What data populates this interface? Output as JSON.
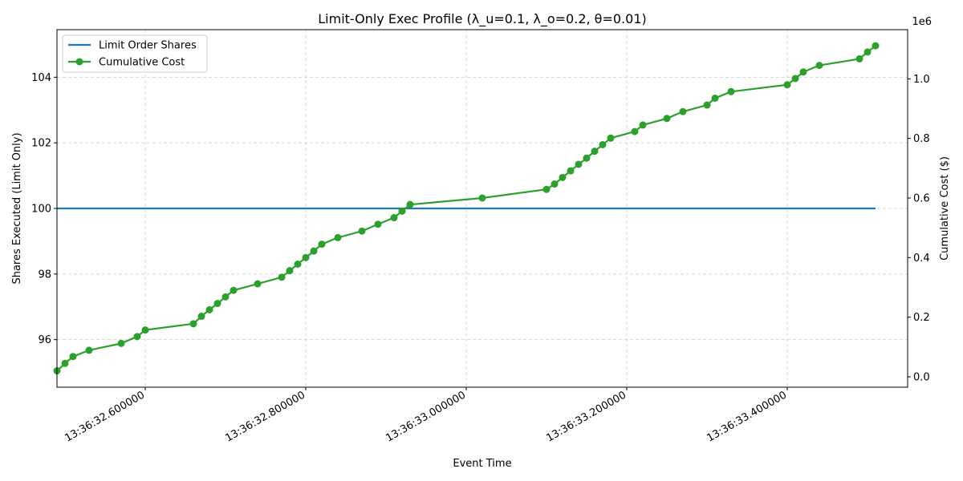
{
  "chart_data": {
    "type": "line",
    "title": "Limit-Only Exec Profile (λ_u=0.1, λ_o=0.2, θ=0.01)",
    "xlabel": "Event Time",
    "ylabel_left": "Shares Executed (Limit Only)",
    "ylabel_right": "Cumulative Cost ($)",
    "right_axis_offset_text": "1e6",
    "x_unit": "seconds after 13:36:32",
    "xlim": [
      0.49,
      1.55
    ],
    "ylim_left": [
      94.55,
      105.45
    ],
    "ylim_right": [
      -0.035,
      1.165
    ],
    "x_ticks": [
      {
        "value": 0.6,
        "label": "13:36:32.600000"
      },
      {
        "value": 0.8,
        "label": "13:36:32.800000"
      },
      {
        "value": 1.0,
        "label": "13:36:33.000000"
      },
      {
        "value": 1.2,
        "label": "13:36:33.200000"
      },
      {
        "value": 1.4,
        "label": "13:36:33.400000"
      }
    ],
    "y_ticks_left": [
      {
        "value": 96,
        "label": "96"
      },
      {
        "value": 98,
        "label": "98"
      },
      {
        "value": 100,
        "label": "100"
      },
      {
        "value": 102,
        "label": "102"
      },
      {
        "value": 104,
        "label": "104"
      }
    ],
    "y_ticks_right": [
      {
        "value": 0.0,
        "label": "0.0"
      },
      {
        "value": 0.2,
        "label": "0.2"
      },
      {
        "value": 0.4,
        "label": "0.4"
      },
      {
        "value": 0.6,
        "label": "0.6"
      },
      {
        "value": 0.8,
        "label": "0.8"
      },
      {
        "value": 1.0,
        "label": "1.0"
      }
    ],
    "grid": true,
    "legend_position": "upper-left",
    "series": [
      {
        "name": "Limit Order Shares",
        "axis": "left",
        "color": "#1f77b4",
        "marker": "none",
        "x": [
          0.49,
          1.51
        ],
        "y": [
          100,
          100
        ]
      },
      {
        "name": "Cumulative Cost",
        "axis": "right",
        "color": "#2ca02c",
        "marker": "circle",
        "x": [
          0.49,
          0.5,
          0.51,
          0.53,
          0.57,
          0.59,
          0.6,
          0.66,
          0.67,
          0.68,
          0.69,
          0.7,
          0.71,
          0.74,
          0.77,
          0.78,
          0.79,
          0.8,
          0.81,
          0.82,
          0.84,
          0.87,
          0.89,
          0.91,
          0.92,
          0.93,
          1.02,
          1.1,
          1.11,
          1.12,
          1.13,
          1.14,
          1.15,
          1.16,
          1.17,
          1.18,
          1.21,
          1.22,
          1.25,
          1.27,
          1.3,
          1.31,
          1.33,
          1.4,
          1.41,
          1.42,
          1.44,
          1.49,
          1.5,
          1.51
        ],
        "y": [
          0.02,
          0.045,
          0.068,
          0.089,
          0.112,
          0.135,
          0.157,
          0.178,
          0.203,
          0.225,
          0.246,
          0.268,
          0.29,
          0.312,
          0.334,
          0.356,
          0.378,
          0.4,
          0.422,
          0.445,
          0.467,
          0.489,
          0.512,
          0.534,
          0.556,
          0.578,
          0.6,
          0.629,
          0.647,
          0.669,
          0.691,
          0.713,
          0.734,
          0.757,
          0.779,
          0.801,
          0.823,
          0.845,
          0.867,
          0.89,
          0.912,
          0.935,
          0.957,
          0.98,
          1.001,
          1.023,
          1.045,
          1.067,
          1.09,
          1.111
        ]
      }
    ]
  }
}
